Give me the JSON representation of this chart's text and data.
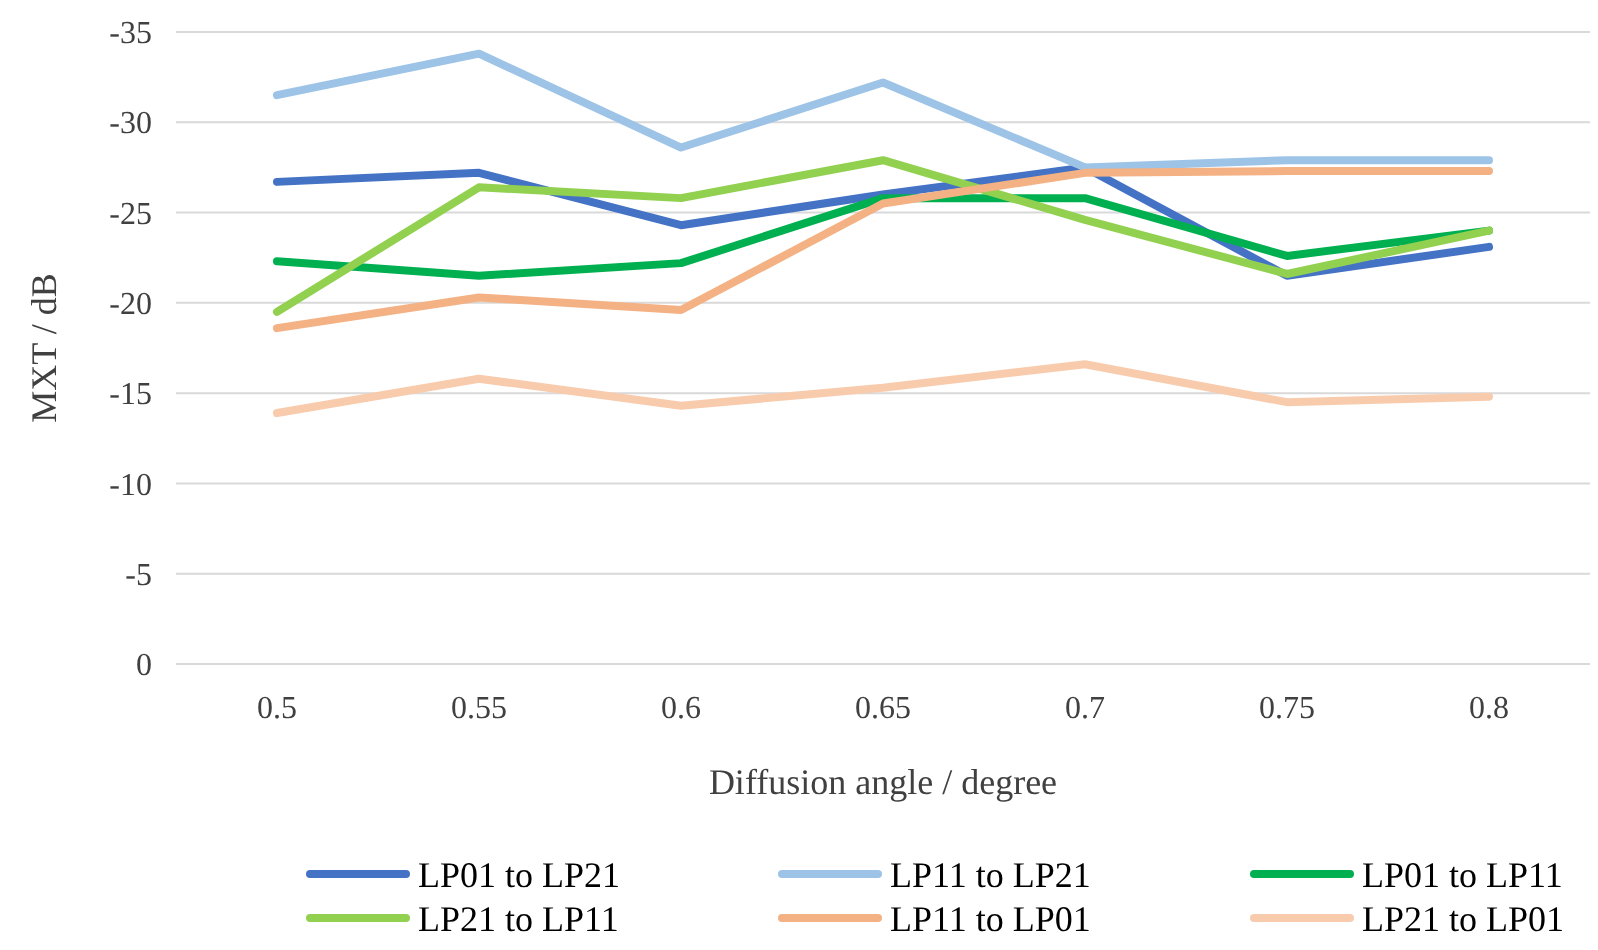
{
  "chart_data": {
    "type": "line",
    "xlabel": "Diffusion angle / degree",
    "ylabel": "MXT / dB",
    "categories": [
      "0.5",
      "0.55",
      "0.6",
      "0.65",
      "0.7",
      "0.75",
      "0.8"
    ],
    "ylim": [
      0,
      -35
    ],
    "yticks": [
      0,
      -5,
      -10,
      -15,
      -20,
      -25,
      -30,
      -35
    ],
    "grid": "y",
    "legend": "bottom",
    "marker": "none",
    "line_style": "solid",
    "series": [
      {
        "name": "LP01 to LP21",
        "color": "#4472c4",
        "values": [
          -26.7,
          -27.2,
          -24.3,
          -26.0,
          -27.5,
          -21.5,
          -23.1
        ]
      },
      {
        "name": "LP11 to LP21",
        "color": "#9dc3e6",
        "values": [
          -31.5,
          -33.8,
          -28.6,
          -32.2,
          -27.5,
          -27.9,
          -27.9
        ]
      },
      {
        "name": "LP01 to LP11",
        "color": "#00b050",
        "values": [
          -22.3,
          -21.5,
          -22.2,
          -25.8,
          -25.8,
          -22.6,
          -24.0
        ]
      },
      {
        "name": "LP21 to LP11",
        "color": "#92d050",
        "values": [
          -19.5,
          -26.4,
          -25.8,
          -27.9,
          -24.6,
          -21.6,
          -24.0
        ]
      },
      {
        "name": "LP11 to LP01",
        "color": "#f4b183",
        "values": [
          -18.6,
          -20.3,
          -19.6,
          -25.5,
          -27.2,
          -27.3,
          -27.3
        ]
      },
      {
        "name": "LP21 to LP01",
        "color": "#f8cbad",
        "values": [
          -13.9,
          -15.8,
          -14.3,
          -15.3,
          -16.6,
          -14.5,
          -14.8
        ]
      }
    ]
  }
}
